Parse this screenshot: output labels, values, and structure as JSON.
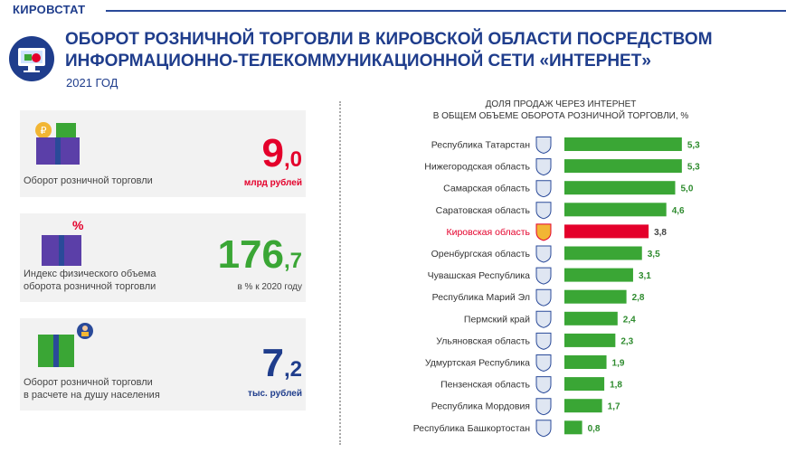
{
  "header": {
    "brand": "КИРОВСТАТ",
    "title_line1": "ОБОРОТ РОЗНИЧНОЙ ТОРГОВЛИ В КИРОВСКОЙ ОБЛАСТИ ПОСРЕДСТВОМ",
    "title_line2": "ИНФОРМАЦИОННО-ТЕЛЕКОММУНИКАЦИОННОЙ СЕТИ «ИНТЕРНЕТ»",
    "year": "2021 ГОД"
  },
  "stats": [
    {
      "label_line1": "Оборот розничной торговли",
      "label_line2": "",
      "int": "9",
      "dec": ",0",
      "unit": "млрд рублей",
      "color": "#e4002b"
    },
    {
      "label_line1": "Индекс физического объема",
      "label_line2": "оборота розничной торговли",
      "int": "176",
      "dec": ",7",
      "unit": "в % к 2020 году",
      "color": "#3aa635"
    },
    {
      "label_line1": "Оборот розничной торговли",
      "label_line2": "в расчете на душу населения",
      "int": "7",
      "dec": ",2",
      "unit": "тыс. рублей",
      "color": "#1f3d8c"
    }
  ],
  "icons": [
    "gift-box-coins-icon",
    "gift-box-percent-icon",
    "gift-box-person-icon",
    "computer-shopping-icon",
    "region-emblem-icon"
  ],
  "colors": {
    "bar": "#3aa635",
    "highlight": "#e4002b",
    "brand": "#1f3d8c"
  },
  "chart_data": {
    "type": "bar",
    "orientation": "horizontal",
    "title_line1": "ДОЛЯ ПРОДАЖ ЧЕРЕЗ ИНТЕРНЕТ",
    "title_line2": "В ОБЩЕМ ОБЪЕМЕ ОБОРОТА РОЗНИЧНОЙ ТОРГОВЛИ, %",
    "categories": [
      "Республика Татарстан",
      "Нижегородская область",
      "Самарская область",
      "Саратовская область",
      "Кировская область",
      "Оренбургская область",
      "Чувашская  Республика",
      "Республика  Марий Эл",
      "Пермский край",
      "Ульяновская область",
      "Удмуртская Республика",
      "Пензенская область",
      "Республика  Мордовия",
      "Республика Башкортостан"
    ],
    "values": [
      5.3,
      5.3,
      5.0,
      4.6,
      3.8,
      3.5,
      3.1,
      2.8,
      2.4,
      2.3,
      1.9,
      1.8,
      1.7,
      0.8
    ],
    "labels": [
      "5,3",
      "5,3",
      "5,0",
      "4,6",
      "3,8",
      "3,5",
      "3,1",
      "2,8",
      "2,4",
      "2,3",
      "1,9",
      "1,8",
      "1,7",
      "0,8"
    ],
    "highlight": "Кировская область",
    "grid": false
  }
}
